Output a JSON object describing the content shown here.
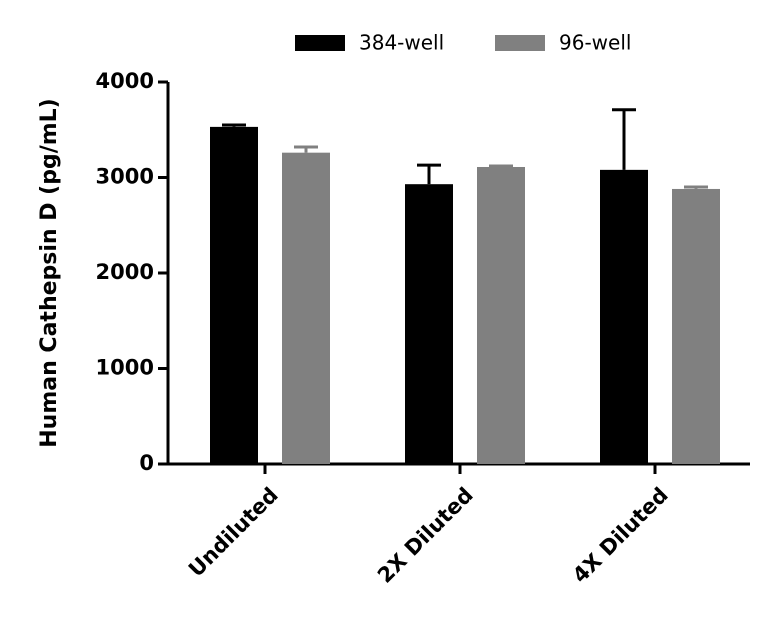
{
  "chart_data": {
    "type": "bar",
    "y_label": "Human Cathepsin D (pg/mL)",
    "categories": [
      "Undiluted",
      "2X Diluted",
      "4X Diluted"
    ],
    "series": [
      {
        "name": "384-well",
        "color": "#000000",
        "values": [
          3530,
          2930,
          3080
        ],
        "errors": [
          20,
          200,
          630
        ]
      },
      {
        "name": "96-well",
        "color": "#808080",
        "values": [
          3260,
          3110,
          2880
        ],
        "errors": [
          60,
          10,
          20
        ]
      }
    ],
    "ylim": [
      0,
      4000
    ],
    "yticks": [
      0,
      1000,
      2000,
      3000,
      4000
    ]
  }
}
